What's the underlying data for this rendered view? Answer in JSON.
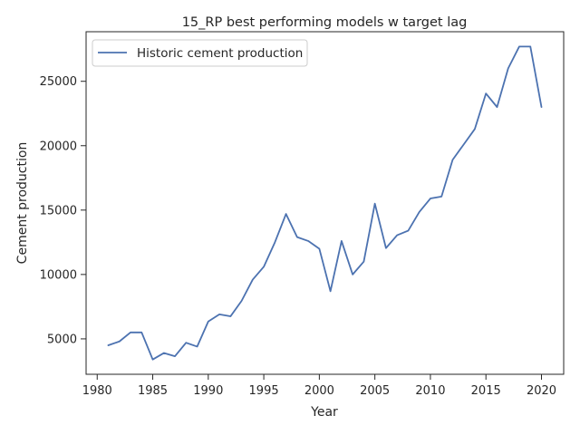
{
  "chart_data": {
    "type": "line",
    "title": "15_RP best performing models w target lag",
    "xlabel": "Year",
    "ylabel": "Cement production",
    "xlim": [
      1979,
      2022
    ],
    "ylim": [
      2250,
      28850
    ],
    "xticks": [
      1980,
      1985,
      1990,
      1995,
      2000,
      2005,
      2010,
      2015,
      2020
    ],
    "yticks": [
      5000,
      10000,
      15000,
      20000,
      25000
    ],
    "grid": false,
    "legend": "top-left",
    "series": [
      {
        "name": "Historic cement production",
        "color": "#4c72b0",
        "x": [
          1981,
          1982,
          1983,
          1984,
          1985,
          1986,
          1987,
          1988,
          1989,
          1990,
          1991,
          1992,
          1993,
          1994,
          1995,
          1996,
          1997,
          1998,
          1999,
          2000,
          2001,
          2002,
          2003,
          2004,
          2005,
          2006,
          2007,
          2008,
          2009,
          2010,
          2011,
          2012,
          2013,
          2014,
          2015,
          2016,
          2017,
          2018,
          2019,
          2020
        ],
        "y": [
          4500,
          4800,
          5500,
          5500,
          3400,
          3900,
          3650,
          4700,
          4400,
          6350,
          6900,
          6750,
          7950,
          9600,
          10600,
          12500,
          14700,
          12900,
          12600,
          12000,
          8700,
          12600,
          10000,
          11000,
          15500,
          12050,
          13050,
          13400,
          14850,
          15900,
          16050,
          18900,
          20100,
          21300,
          24050,
          23000,
          26000,
          27700,
          27700,
          23000
        ]
      }
    ]
  }
}
